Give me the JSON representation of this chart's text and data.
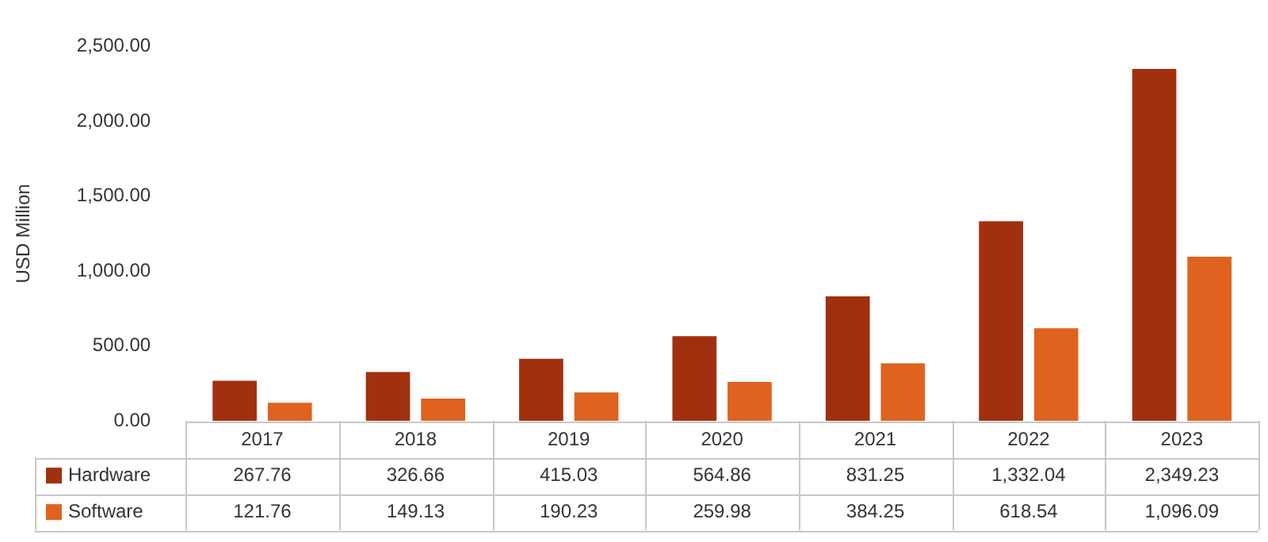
{
  "chart_data": {
    "type": "bar",
    "ylabel": "USD Million",
    "categories": [
      "2017",
      "2018",
      "2019",
      "2020",
      "2021",
      "2022",
      "2023"
    ],
    "series": [
      {
        "name": "Hardware",
        "color": "#a1300f",
        "values": [
          267.76,
          326.66,
          415.03,
          564.86,
          831.25,
          1332.04,
          2349.23
        ],
        "value_labels": [
          "267.76",
          "326.66",
          "415.03",
          "564.86",
          "831.25",
          "1,332.04",
          "2,349.23"
        ]
      },
      {
        "name": "Software",
        "color": "#e0621f",
        "values": [
          121.76,
          149.13,
          190.23,
          259.98,
          384.25,
          618.54,
          1096.09
        ],
        "value_labels": [
          "121.76",
          "149.13",
          "190.23",
          "259.98",
          "384.25",
          "618.54",
          "1,096.09"
        ]
      }
    ],
    "ylim": [
      0,
      2500
    ],
    "yticks": [
      {
        "value": 0,
        "label": "0.00"
      },
      {
        "value": 500,
        "label": "500.00"
      },
      {
        "value": 1000,
        "label": "1,000.00"
      },
      {
        "value": 1500,
        "label": "1,500.00"
      },
      {
        "value": 2000,
        "label": "2,000.00"
      },
      {
        "value": 2500,
        "label": "2,500.00"
      }
    ],
    "grid": false,
    "legend": "bottom left"
  }
}
